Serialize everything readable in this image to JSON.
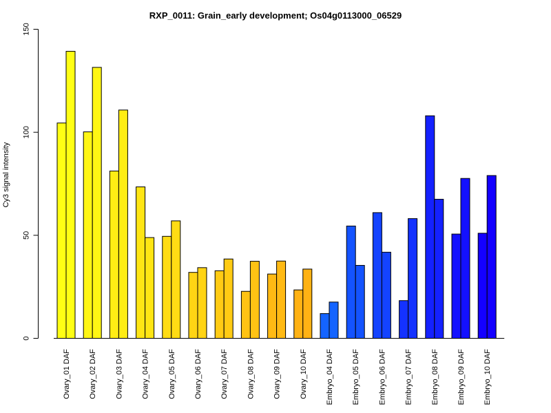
{
  "chart_data": {
    "type": "bar",
    "title": "RXP_0011: Grain_early development; Os04g0113000_06529",
    "xlabel": "",
    "ylabel": "Cy3 signal intensity",
    "ylim": [
      0,
      150
    ],
    "yticks": [
      0,
      50,
      100,
      150
    ],
    "grid": false,
    "legend": "none",
    "categories": [
      "Ovary_01 DAF",
      "Ovary_02 DAF",
      "Ovary_03 DAF",
      "Ovary_04 DAF",
      "Ovary_05 DAF",
      "Ovary_06 DAF",
      "Ovary_07 DAF",
      "Ovary_08 DAF",
      "Ovary_09 DAF",
      "Ovary_10 DAF",
      "Embryo_04 DAF",
      "Embryo_05 DAF",
      "Embryo_06 DAF",
      "Embryo_07 DAF",
      "Embryo_08 DAF",
      "Embryo_09 DAF",
      "Embryo_10 DAF"
    ],
    "series": [
      {
        "values": [
          104.5,
          100.2,
          81.2,
          73.5,
          49.5,
          32.0,
          32.8,
          22.8,
          31.2,
          23.5,
          12.0,
          54.5,
          61.0,
          18.3,
          108.0,
          50.6,
          51.0
        ]
      },
      {
        "values": [
          139.3,
          131.5,
          110.8,
          48.9,
          57.0,
          34.3,
          38.5,
          37.4,
          37.5,
          33.6,
          17.6,
          35.4,
          41.8,
          58.1,
          67.5,
          77.6,
          79.0
        ]
      }
    ],
    "bar_colors": [
      "#FFFF14",
      "#FFF614",
      "#FFED14",
      "#FFE514",
      "#FFDC14",
      "#FFD414",
      "#FFCB14",
      "#FFC314",
      "#FFBA14",
      "#FFB214",
      "#1464FF",
      "#1453FF",
      "#1443FF",
      "#1432FF",
      "#1421FF",
      "#1411FF",
      "#1400FF"
    ],
    "bar_border": "#000000",
    "axis_color": "#000000"
  }
}
